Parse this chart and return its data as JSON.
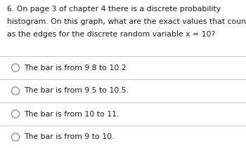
{
  "question_number": "6.",
  "question_text": "On page 3 of chapter 4 there is a discrete probability\nhistogram. On this graph, what are the exact values that count\nas the edges for the discrete random variable x = 10?",
  "options": [
    "The bar is from 9.8 to 10.2",
    "The bar is from 9.5 to 10.5.",
    "The bar is from 10 to 11.",
    "The bar is from 9 to 10."
  ],
  "bg_color": "#ffffff",
  "text_color": "#1a1a1a",
  "divider_color": "#c8c8c8",
  "circle_color": "#888888",
  "question_fontsize": 7.8,
  "option_fontsize": 7.8
}
